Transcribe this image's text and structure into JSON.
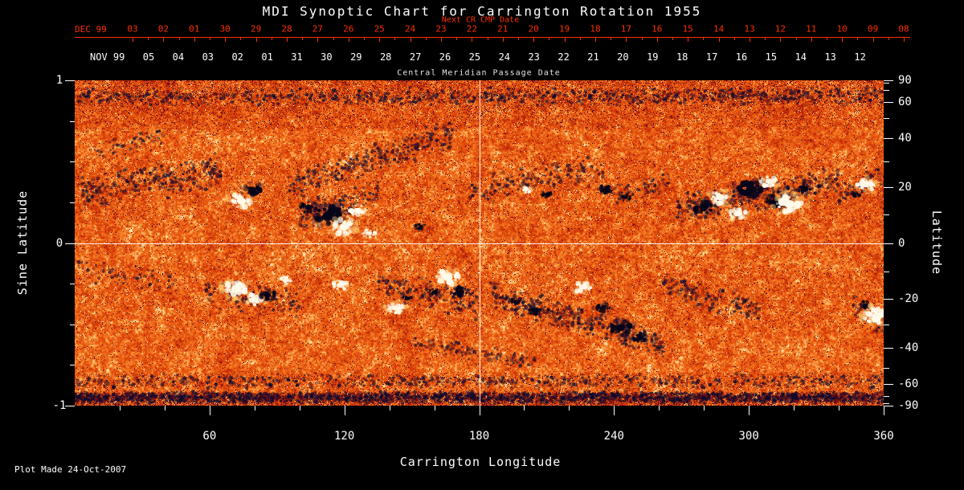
{
  "title": "MDI Synoptic Chart for Carrington Rotation 1955",
  "top_axis": {
    "next_cr_label": "Next CR CMP Date",
    "dec_label": "DEC 99",
    "dec_dates": [
      "03",
      "02",
      "01",
      "30",
      "29",
      "28",
      "27",
      "26",
      "25",
      "24",
      "23",
      "22",
      "21",
      "20",
      "19",
      "18",
      "17",
      "16",
      "15",
      "14",
      "13",
      "12",
      "11",
      "10",
      "09",
      "08"
    ],
    "nov_label": "NOV 99",
    "nov_dates": [
      "05",
      "04",
      "03",
      "02",
      "01",
      "31",
      "30",
      "29",
      "28",
      "27",
      "26",
      "25",
      "24",
      "23",
      "22",
      "21",
      "20",
      "19",
      "18",
      "17",
      "16",
      "15",
      "14",
      "13",
      "12"
    ],
    "cmp_label": "Central Meridian Passage Date"
  },
  "left_axis": {
    "label": "Sine Latitude",
    "ticks": [
      "1",
      "0",
      "-1"
    ]
  },
  "right_axis": {
    "label": "Latitude",
    "ticks": [
      "90",
      "60",
      "40",
      "20",
      "0",
      "-20",
      "-40",
      "-60",
      "-90"
    ]
  },
  "bottom_axis": {
    "label": "Carrington Longitude",
    "ticks": [
      "60",
      "120",
      "180",
      "240",
      "300",
      "360"
    ]
  },
  "footer": {
    "plot_made": "Plot Made 24-Oct-2007"
  },
  "colors": {
    "date_red": "#ff3000",
    "text_white": "#ffffff",
    "background": "#000000",
    "quiet_sun_orange": "#e8560e",
    "negative_polarity": "#05051a",
    "positive_polarity": "#fffbe8"
  },
  "chart_data": {
    "type": "heatmap",
    "title": "MDI Synoptic Chart for Carrington Rotation 1955",
    "subtitle": "Solar surface magnetic field synoptic map (MDI magnetogram, CR 1955)",
    "xlabel": "Carrington Longitude",
    "x_range": [
      0,
      360
    ],
    "x_ticks": [
      60,
      120,
      180,
      240,
      300,
      360
    ],
    "x_minor_step": 20,
    "ylabel_left": "Sine Latitude",
    "y_range": [
      -1,
      1
    ],
    "left_ticks": [
      1,
      0,
      -1
    ],
    "left_minor_ticks": [
      0.75,
      0.5,
      0.25,
      -0.25,
      -0.5,
      -0.75
    ],
    "ylabel_right": "Latitude",
    "right_ticks": [
      90,
      60,
      40,
      20,
      0,
      -20,
      -40,
      -60,
      -90
    ],
    "right_minor_ticks": [
      80,
      70,
      50,
      30,
      10,
      -10,
      -30,
      -50,
      -70,
      -80
    ],
    "grid": "white crosshair at longitude 180 and sine latitude 0",
    "crosshair": {
      "longitude": 180,
      "sine_latitude": 0
    },
    "description": "Mottled orange/red quiet-Sun field with dark navy (negative polarity) and cream-white (positive polarity) active regions in two activity belts near sine latitude +0.3 and -0.35; dense dark speckle band along the bottom edge and darker mottling near the top.",
    "active_regions": [
      {
        "lon": 74,
        "slat": 0.26,
        "polarity": "positive",
        "size": 10
      },
      {
        "lon": 79,
        "slat": 0.33,
        "polarity": "negative",
        "size": 8
      },
      {
        "lon": 104,
        "slat": 0.22,
        "polarity": "negative",
        "size": 8
      },
      {
        "lon": 113,
        "slat": 0.17,
        "polarity": "negative",
        "size": 13
      },
      {
        "lon": 120,
        "slat": 0.1,
        "polarity": "positive",
        "size": 11
      },
      {
        "lon": 126,
        "slat": 0.2,
        "polarity": "positive",
        "size": 8
      },
      {
        "lon": 131,
        "slat": 0.06,
        "polarity": "positive",
        "size": 6
      },
      {
        "lon": 154,
        "slat": 0.1,
        "polarity": "negative",
        "size": 5
      },
      {
        "lon": 201,
        "slat": 0.33,
        "polarity": "positive",
        "size": 5
      },
      {
        "lon": 210,
        "slat": 0.3,
        "polarity": "negative",
        "size": 5
      },
      {
        "lon": 237,
        "slat": 0.33,
        "polarity": "negative",
        "size": 7
      },
      {
        "lon": 245,
        "slat": 0.28,
        "polarity": "negative",
        "size": 5
      },
      {
        "lon": 280,
        "slat": 0.22,
        "polarity": "negative",
        "size": 9
      },
      {
        "lon": 287,
        "slat": 0.28,
        "polarity": "positive",
        "size": 9
      },
      {
        "lon": 295,
        "slat": 0.18,
        "polarity": "positive",
        "size": 8
      },
      {
        "lon": 301,
        "slat": 0.33,
        "polarity": "negative",
        "size": 12
      },
      {
        "lon": 309,
        "slat": 0.38,
        "polarity": "positive",
        "size": 8
      },
      {
        "lon": 312,
        "slat": 0.26,
        "polarity": "negative",
        "size": 9
      },
      {
        "lon": 318,
        "slat": 0.24,
        "polarity": "positive",
        "size": 12
      },
      {
        "lon": 325,
        "slat": 0.33,
        "polarity": "negative",
        "size": 7
      },
      {
        "lon": 347,
        "slat": 0.3,
        "polarity": "negative",
        "size": 5
      },
      {
        "lon": 352,
        "slat": 0.36,
        "polarity": "positive",
        "size": 9
      },
      {
        "lon": 72,
        "slat": -0.28,
        "polarity": "positive",
        "size": 11
      },
      {
        "lon": 80,
        "slat": -0.35,
        "polarity": "positive",
        "size": 8
      },
      {
        "lon": 86,
        "slat": -0.32,
        "polarity": "negative",
        "size": 7
      },
      {
        "lon": 94,
        "slat": -0.23,
        "polarity": "positive",
        "size": 6
      },
      {
        "lon": 118,
        "slat": -0.26,
        "polarity": "positive",
        "size": 7
      },
      {
        "lon": 143,
        "slat": -0.4,
        "polarity": "positive",
        "size": 8
      },
      {
        "lon": 148,
        "slat": -0.34,
        "polarity": "negative",
        "size": 5
      },
      {
        "lon": 160,
        "slat": -0.3,
        "polarity": "negative",
        "size": 5
      },
      {
        "lon": 166,
        "slat": -0.21,
        "polarity": "positive",
        "size": 11
      },
      {
        "lon": 172,
        "slat": -0.3,
        "polarity": "negative",
        "size": 7
      },
      {
        "lon": 196,
        "slat": -0.36,
        "polarity": "negative",
        "size": 5
      },
      {
        "lon": 205,
        "slat": -0.42,
        "polarity": "negative",
        "size": 6
      },
      {
        "lon": 226,
        "slat": -0.27,
        "polarity": "positive",
        "size": 8
      },
      {
        "lon": 235,
        "slat": -0.4,
        "polarity": "negative",
        "size": 7
      },
      {
        "lon": 243,
        "slat": -0.52,
        "polarity": "negative",
        "size": 10
      },
      {
        "lon": 252,
        "slat": -0.58,
        "polarity": "negative",
        "size": 7
      },
      {
        "lon": 352,
        "slat": -0.38,
        "polarity": "negative",
        "size": 5
      },
      {
        "lon": 357,
        "slat": -0.45,
        "polarity": "positive",
        "size": 12
      }
    ],
    "mottle_patches": [
      {
        "lon0": 3,
        "lon1": 65,
        "slat0": 0.3,
        "slat1": 0.45,
        "spread": 0.12,
        "density": 2.2
      },
      {
        "lon0": 8,
        "lon1": 40,
        "slat0": 0.55,
        "slat1": 0.65,
        "spread": 0.08,
        "density": 0.8
      },
      {
        "lon0": 95,
        "lon1": 170,
        "slat0": 0.35,
        "slat1": 0.68,
        "spread": 0.1,
        "density": 1.8
      },
      {
        "lon0": 100,
        "lon1": 135,
        "slat0": 0.15,
        "slat1": 0.3,
        "spread": 0.1,
        "density": 1.5
      },
      {
        "lon0": 175,
        "lon1": 235,
        "slat0": 0.32,
        "slat1": 0.45,
        "spread": 0.1,
        "density": 1.2
      },
      {
        "lon0": 240,
        "lon1": 265,
        "slat0": 0.28,
        "slat1": 0.38,
        "spread": 0.08,
        "density": 1.0
      },
      {
        "lon0": 268,
        "lon1": 340,
        "slat0": 0.2,
        "slat1": 0.38,
        "spread": 0.12,
        "density": 2.0
      },
      {
        "lon0": 340,
        "lon1": 360,
        "slat0": 0.3,
        "slat1": 0.42,
        "spread": 0.08,
        "density": 1.0
      },
      {
        "lon0": 58,
        "lon1": 100,
        "slat0": -0.3,
        "slat1": -0.38,
        "spread": 0.1,
        "density": 1.2
      },
      {
        "lon0": 135,
        "lon1": 180,
        "slat0": -0.25,
        "slat1": -0.38,
        "spread": 0.1,
        "density": 1.5
      },
      {
        "lon0": 185,
        "lon1": 262,
        "slat0": -0.32,
        "slat1": -0.62,
        "spread": 0.09,
        "density": 2.2
      },
      {
        "lon0": 262,
        "lon1": 305,
        "slat0": -0.25,
        "slat1": -0.42,
        "spread": 0.1,
        "density": 1.5
      },
      {
        "lon0": 150,
        "lon1": 205,
        "slat0": -0.62,
        "slat1": -0.72,
        "spread": 0.06,
        "density": 0.8
      },
      {
        "lon0": 345,
        "lon1": 360,
        "slat0": -0.38,
        "slat1": -0.52,
        "spread": 0.08,
        "density": 1.0
      },
      {
        "lon0": 0,
        "lon1": 45,
        "slat0": -0.15,
        "slat1": -0.25,
        "spread": 0.08,
        "density": 0.6
      },
      {
        "lon0": 0,
        "lon1": 360,
        "slat0": 0.9,
        "slat1": 0.9,
        "spread": 0.06,
        "density": 1.2
      },
      {
        "lon0": 0,
        "lon1": 360,
        "slat0": -0.85,
        "slat1": -0.85,
        "spread": 0.05,
        "density": 0.8
      },
      {
        "lon0": 0,
        "lon1": 360,
        "slat0": -0.95,
        "slat1": -0.95,
        "spread": 0.04,
        "density": 3.0
      }
    ],
    "annotations": [
      "Next CR CMP Date",
      "Central Meridian Passage Date",
      "Plot Made 24-Oct-2007"
    ]
  }
}
